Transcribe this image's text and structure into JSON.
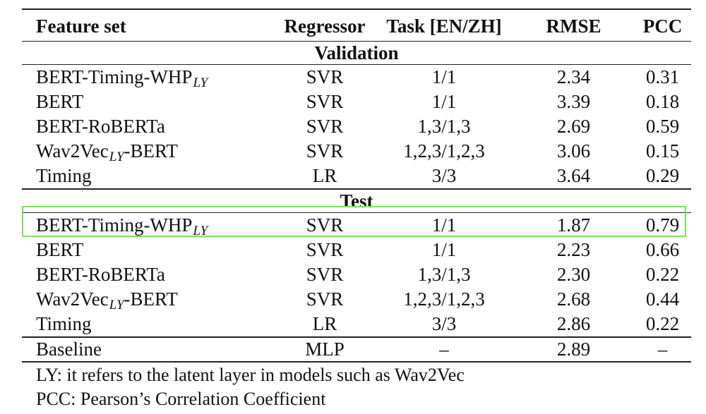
{
  "table": {
    "headers": {
      "feature_set": "Feature set",
      "regressor": "Regressor",
      "task": "Task [EN/ZH]",
      "rmse": "RMSE",
      "pcc": "PCC"
    },
    "validation": {
      "label": "Validation",
      "rows": [
        {
          "feature": "BERT-Timing-WHP",
          "feature_sub": "LY",
          "feature_suffix": "",
          "regressor": "SVR",
          "task": "1/1",
          "rmse": "2.34",
          "pcc": "0.31"
        },
        {
          "feature": "BERT",
          "feature_sub": "",
          "feature_suffix": "",
          "regressor": "SVR",
          "task": "1/1",
          "rmse": "3.39",
          "pcc": "0.18"
        },
        {
          "feature": "BERT-RoBERTa",
          "feature_sub": "",
          "feature_suffix": "",
          "regressor": "SVR",
          "task": "1,3/1,3",
          "rmse": "2.69",
          "pcc": "0.59"
        },
        {
          "feature": "Wav2Vec",
          "feature_sub": "LY",
          "feature_suffix": "-BERT",
          "regressor": "SVR",
          "task": "1,2,3/1,2,3",
          "rmse": "3.06",
          "pcc": "0.15"
        },
        {
          "feature": "Timing",
          "feature_sub": "",
          "feature_suffix": "",
          "regressor": "LR",
          "task": "3/3",
          "rmse": "3.64",
          "pcc": "0.29"
        }
      ]
    },
    "test": {
      "label": "Test",
      "rows": [
        {
          "feature": "BERT-Timing-WHP",
          "feature_sub": "LY",
          "feature_suffix": "",
          "regressor": "SVR",
          "task": "1/1",
          "rmse": "1.87",
          "pcc": "0.79"
        },
        {
          "feature": "BERT",
          "feature_sub": "",
          "feature_suffix": "",
          "regressor": "SVR",
          "task": "1/1",
          "rmse": "2.23",
          "pcc": "0.66"
        },
        {
          "feature": "BERT-RoBERTa",
          "feature_sub": "",
          "feature_suffix": "",
          "regressor": "SVR",
          "task": "1,3/1,3",
          "rmse": "2.30",
          "pcc": "0.22"
        },
        {
          "feature": "Wav2Vec",
          "feature_sub": "LY",
          "feature_suffix": "-BERT",
          "regressor": "SVR",
          "task": "1,2,3/1,2,3",
          "rmse": "2.68",
          "pcc": "0.44"
        },
        {
          "feature": "Timing",
          "feature_sub": "",
          "feature_suffix": "",
          "regressor": "LR",
          "task": "3/3",
          "rmse": "2.86",
          "pcc": "0.22"
        }
      ]
    },
    "baseline": {
      "feature": "Baseline",
      "regressor": "MLP",
      "task": "–",
      "rmse": "2.89",
      "pcc": "–"
    }
  },
  "notes": [
    "LY: it refers to the latent layer in models such as Wav2Vec",
    "PCC: Pearson’s Correlation Coefficient"
  ],
  "colors": {
    "highlight": "#7be05a",
    "rules": "#222222",
    "text": "#111111"
  }
}
